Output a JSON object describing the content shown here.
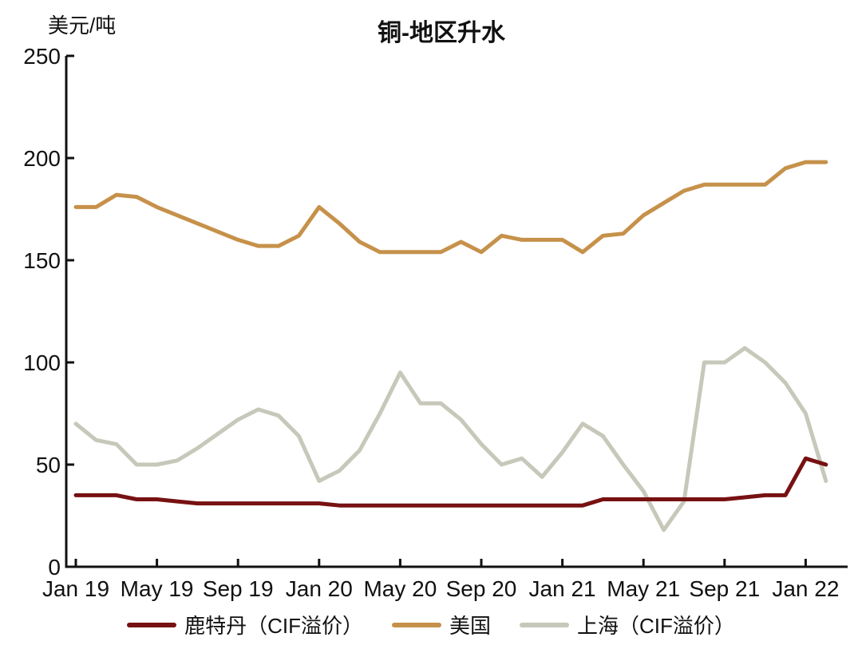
{
  "chart_data": {
    "type": "line",
    "title": "铜-地区升水",
    "unit_label": "美元/吨",
    "x_tick_labels": [
      "Jan 19",
      "May 19",
      "Sep 19",
      "Jan 20",
      "May 20",
      "Sep 20",
      "Jan 21",
      "May 21",
      "Sep 21",
      "Jan 22"
    ],
    "y_ticks": [
      0,
      50,
      100,
      150,
      200,
      250
    ],
    "ylim": [
      0,
      250
    ],
    "grid": false,
    "legend_position": "bottom",
    "axis_color": "#111111",
    "x": [
      "2019-01",
      "2019-02",
      "2019-03",
      "2019-04",
      "2019-05",
      "2019-06",
      "2019-07",
      "2019-08",
      "2019-09",
      "2019-10",
      "2019-11",
      "2019-12",
      "2020-01",
      "2020-02",
      "2020-03",
      "2020-04",
      "2020-05",
      "2020-06",
      "2020-07",
      "2020-08",
      "2020-09",
      "2020-10",
      "2020-11",
      "2020-12",
      "2021-01",
      "2021-02",
      "2021-03",
      "2021-04",
      "2021-05",
      "2021-06",
      "2021-07",
      "2021-08",
      "2021-09",
      "2021-10",
      "2021-11",
      "2021-12",
      "2022-01",
      "2022-02"
    ],
    "series": [
      {
        "name": "鹿特丹（CIF溢价）",
        "color": "#771112",
        "values": [
          35,
          35,
          35,
          33,
          33,
          32,
          31,
          31,
          31,
          31,
          31,
          31,
          31,
          30,
          30,
          30,
          30,
          30,
          30,
          30,
          30,
          30,
          30,
          30,
          30,
          30,
          33,
          33,
          33,
          33,
          33,
          33,
          33,
          34,
          35,
          35,
          53,
          50
        ]
      },
      {
        "name": "美国",
        "color": "#C6914A",
        "values": [
          176,
          176,
          182,
          181,
          176,
          172,
          168,
          164,
          160,
          157,
          157,
          162,
          176,
          168,
          159,
          154,
          154,
          154,
          154,
          159,
          154,
          162,
          160,
          160,
          160,
          154,
          162,
          163,
          172,
          178,
          184,
          187,
          187,
          187,
          187,
          195,
          198,
          198
        ]
      },
      {
        "name": "上海（CIF溢价）",
        "color": "#C7C8BA",
        "values": [
          70,
          62,
          60,
          50,
          50,
          52,
          58,
          65,
          72,
          77,
          74,
          64,
          42,
          47,
          57,
          75,
          95,
          80,
          80,
          72,
          60,
          50,
          53,
          44,
          56,
          70,
          64,
          50,
          37,
          18,
          32,
          100,
          100,
          107,
          100,
          90,
          75,
          42
        ]
      }
    ]
  }
}
